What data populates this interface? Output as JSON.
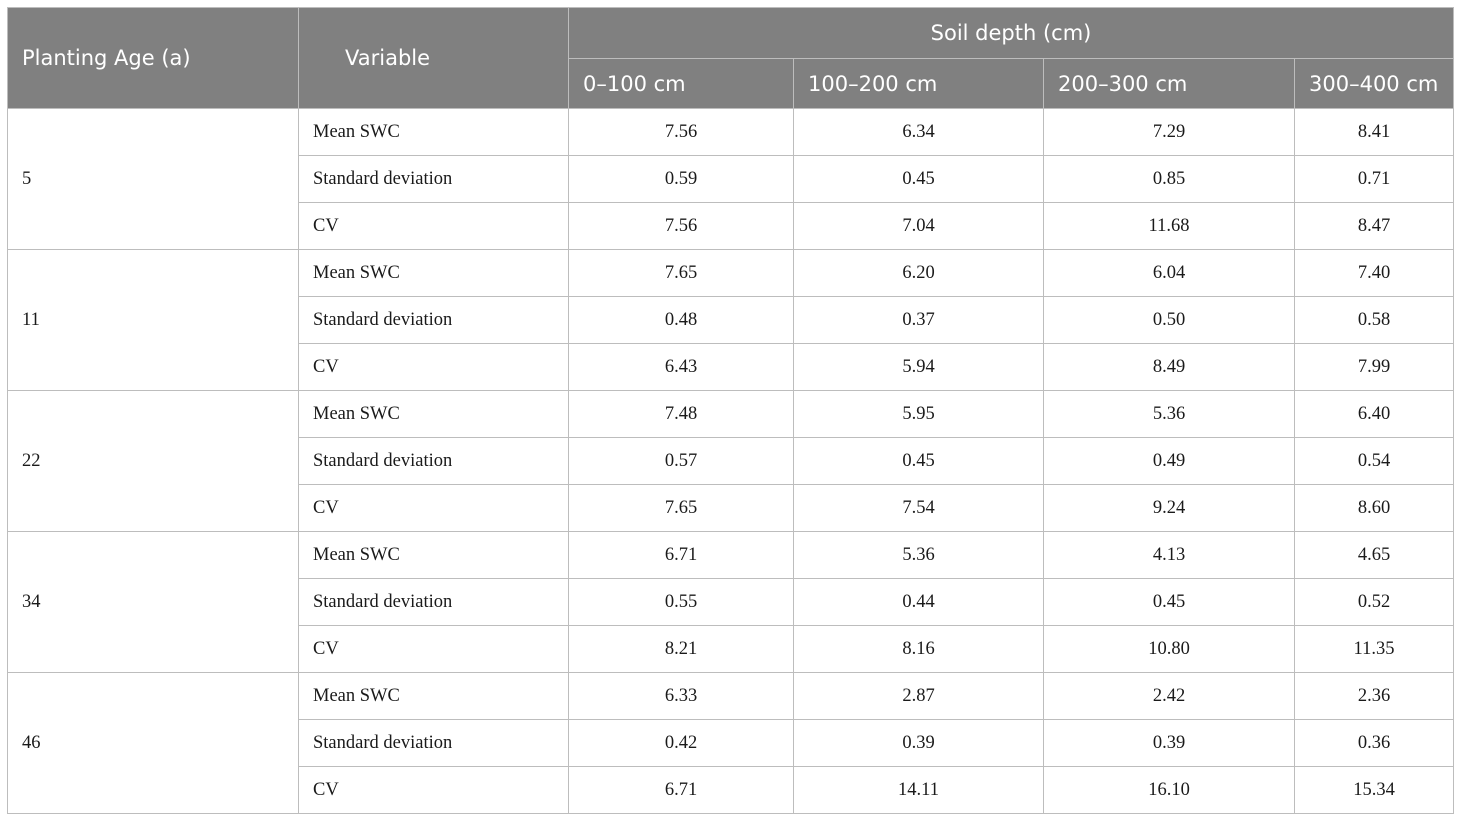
{
  "headers": {
    "planting_age": "Planting Age (a)",
    "variable": "Variable",
    "soil_depth": "Soil depth (cm)",
    "depths": [
      "0–100 cm",
      "100–200 cm",
      "200–300 cm",
      "300–400 cm"
    ]
  },
  "groups": [
    {
      "age": "5",
      "rows": [
        {
          "variable": "Mean SWC",
          "values": [
            "7.56",
            "6.34",
            "7.29",
            "8.41"
          ]
        },
        {
          "variable": "Standard deviation",
          "values": [
            "0.59",
            "0.45",
            "0.85",
            "0.71"
          ]
        },
        {
          "variable": "CV",
          "values": [
            "7.56",
            "7.04",
            "11.68",
            "8.47"
          ]
        }
      ]
    },
    {
      "age": "11",
      "rows": [
        {
          "variable": "Mean SWC",
          "values": [
            "7.65",
            "6.20",
            "6.04",
            "7.40"
          ]
        },
        {
          "variable": "Standard deviation",
          "values": [
            "0.48",
            "0.37",
            "0.50",
            "0.58"
          ]
        },
        {
          "variable": "CV",
          "values": [
            "6.43",
            "5.94",
            "8.49",
            "7.99"
          ]
        }
      ]
    },
    {
      "age": "22",
      "rows": [
        {
          "variable": "Mean SWC",
          "values": [
            "7.48",
            "5.95",
            "5.36",
            "6.40"
          ]
        },
        {
          "variable": "Standard deviation",
          "values": [
            "0.57",
            "0.45",
            "0.49",
            "0.54"
          ]
        },
        {
          "variable": "CV",
          "values": [
            "7.65",
            "7.54",
            "9.24",
            "8.60"
          ]
        }
      ]
    },
    {
      "age": "34",
      "rows": [
        {
          "variable": "Mean SWC",
          "values": [
            "6.71",
            "5.36",
            "4.13",
            "4.65"
          ]
        },
        {
          "variable": "Standard deviation",
          "values": [
            "0.55",
            "0.44",
            "0.45",
            "0.52"
          ]
        },
        {
          "variable": "CV",
          "values": [
            "8.21",
            "8.16",
            "10.80",
            "11.35"
          ]
        }
      ]
    },
    {
      "age": "46",
      "rows": [
        {
          "variable": "Mean SWC",
          "values": [
            "6.33",
            "2.87",
            "2.42",
            "2.36"
          ]
        },
        {
          "variable": "Standard deviation",
          "values": [
            "0.42",
            "0.39",
            "0.39",
            "0.36"
          ]
        },
        {
          "variable": "CV",
          "values": [
            "6.71",
            "14.11",
            "16.10",
            "15.34"
          ]
        }
      ]
    }
  ]
}
